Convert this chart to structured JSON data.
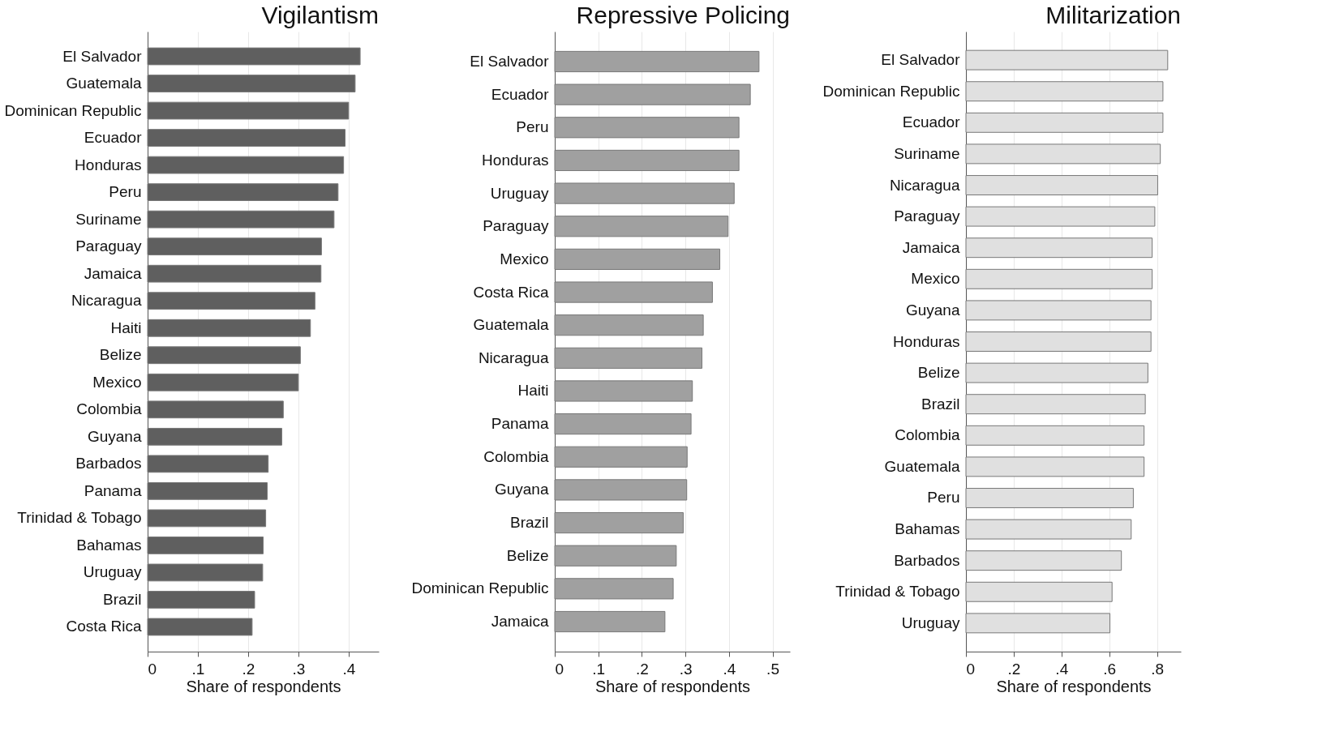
{
  "chart_data": [
    {
      "type": "bar",
      "orientation": "horizontal",
      "title": "Vigilantism",
      "xlabel": "Share of respondents",
      "grid": "x",
      "categories": [
        "El Salvador",
        "Guatemala",
        "Dominican Republic",
        "Ecuador",
        "Honduras",
        "Peru",
        "Suriname",
        "Paraguay",
        "Jamaica",
        "Nicaragua",
        "Haiti",
        "Belize",
        "Mexico",
        "Colombia",
        "Guyana",
        "Barbados",
        "Panama",
        "Trinidad & Tobago",
        "Bahamas",
        "Uruguay",
        "Brazil",
        "Costa Rica"
      ],
      "values": [
        0.423,
        0.413,
        0.4,
        0.393,
        0.39,
        0.379,
        0.371,
        0.346,
        0.345,
        0.333,
        0.324,
        0.304,
        0.3,
        0.27,
        0.267,
        0.24,
        0.238,
        0.235,
        0.23,
        0.229,
        0.213,
        0.208
      ],
      "color": "#5f5f5f",
      "xlim": [
        0,
        0.46
      ],
      "xticks": [
        0,
        {
          "value": 0.1,
          "label": ".1"
        },
        {
          "value": 0.2,
          "label": ".2"
        },
        {
          "value": 0.3,
          "label": ".3"
        },
        {
          "value": 0.4,
          "label": ".4"
        }
      ]
    },
    {
      "type": "bar",
      "orientation": "horizontal",
      "title": "Repressive Policing",
      "xlabel": "Share of respondents",
      "grid": "x",
      "categories": [
        "El Salvador",
        "Ecuador",
        "Peru",
        "Honduras",
        "Uruguay",
        "Paraguay",
        "Mexico",
        "Costa Rica",
        "Guatemala",
        "Nicaragua",
        "Haiti",
        "Panama",
        "Colombia",
        "Guyana",
        "Brazil",
        "Belize",
        "Dominican Republic",
        "Jamaica"
      ],
      "values": [
        0.469,
        0.449,
        0.423,
        0.423,
        0.412,
        0.398,
        0.379,
        0.362,
        0.341,
        0.338,
        0.316,
        0.313,
        0.304,
        0.303,
        0.295,
        0.279,
        0.272,
        0.253
      ],
      "color": "#a0a0a0",
      "xlim": [
        0,
        0.54
      ],
      "xticks": [
        0,
        {
          "value": 0.1,
          "label": ".1"
        },
        {
          "value": 0.2,
          "label": ".2"
        },
        {
          "value": 0.3,
          "label": ".3"
        },
        {
          "value": 0.4,
          "label": ".4"
        },
        {
          "value": 0.5,
          "label": ".5"
        }
      ]
    },
    {
      "type": "bar",
      "orientation": "horizontal",
      "title": "Militarization",
      "xlabel": "Share of respondents",
      "grid": "x",
      "categories": [
        "El Salvador",
        "Dominican Republic",
        "Ecuador",
        "Suriname",
        "Nicaragua",
        "Paraguay",
        "Jamaica",
        "Mexico",
        "Guyana",
        "Honduras",
        "Belize",
        "Brazil",
        "Colombia",
        "Guatemala",
        "Peru",
        "Bahamas",
        "Barbados",
        "Trinidad & Tobago",
        "Uruguay"
      ],
      "values": [
        0.845,
        0.825,
        0.825,
        0.814,
        0.803,
        0.791,
        0.78,
        0.78,
        0.775,
        0.775,
        0.762,
        0.751,
        0.746,
        0.746,
        0.701,
        0.692,
        0.651,
        0.612,
        0.603
      ],
      "color": "#e0e0e0",
      "xlim": [
        0,
        0.9
      ],
      "xticks": [
        0,
        {
          "value": 0.2,
          "label": ".2"
        },
        {
          "value": 0.4,
          "label": ".4"
        },
        {
          "value": 0.6,
          "label": ".6"
        },
        {
          "value": 0.8,
          "label": ".8"
        }
      ]
    }
  ]
}
